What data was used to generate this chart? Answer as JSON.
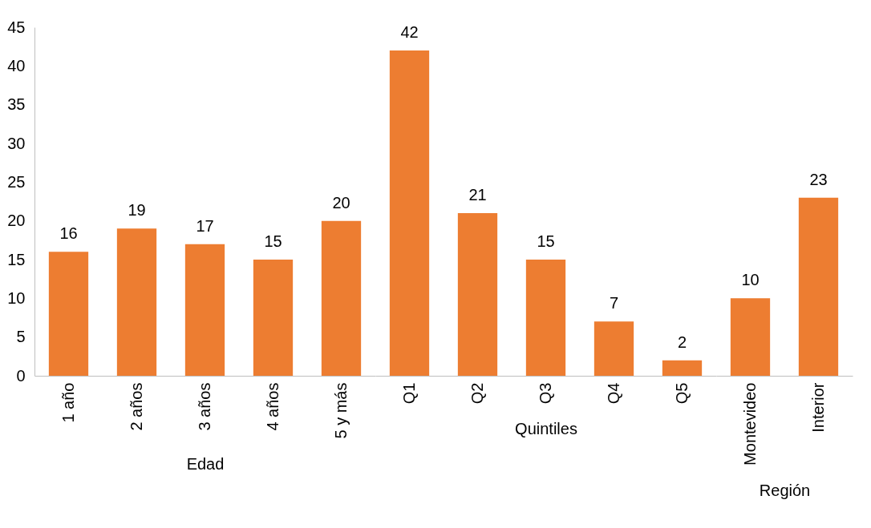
{
  "chart_data": [
    {
      "type": "bar",
      "xlabel": "Edad",
      "categories": [
        "1 año",
        "2 años",
        "3 años",
        "4 años",
        "5 y más"
      ],
      "values": [
        16,
        19,
        17,
        15,
        20
      ],
      "color": "#ed7d31",
      "ylim": [
        0,
        45
      ],
      "yticks": [
        0,
        5,
        10,
        15,
        20,
        25,
        30,
        35,
        40,
        45
      ],
      "data_labels": true
    },
    {
      "type": "bar",
      "xlabel": "Quintiles",
      "categories": [
        "Q1",
        "Q2",
        "Q3",
        "Q4",
        "Q5"
      ],
      "values": [
        42,
        21,
        15,
        7,
        2
      ],
      "color": "#ed7d31",
      "ylim": [
        0,
        45
      ],
      "yticks": [
        0,
        5,
        10,
        15,
        20,
        25,
        30,
        35,
        40,
        45
      ],
      "data_labels": true,
      "tick_labels": "x"
    },
    {
      "type": "bar",
      "xlabel": "Región",
      "categories": [
        "Montevideo",
        "Interior"
      ],
      "values": [
        10,
        23
      ],
      "color": "#ed7d31",
      "ylim": [
        0,
        45
      ],
      "yticks": [
        0,
        5,
        10,
        15,
        20,
        25,
        30,
        35,
        40,
        45
      ],
      "data_labels": true,
      "tick_labels": "x"
    }
  ]
}
